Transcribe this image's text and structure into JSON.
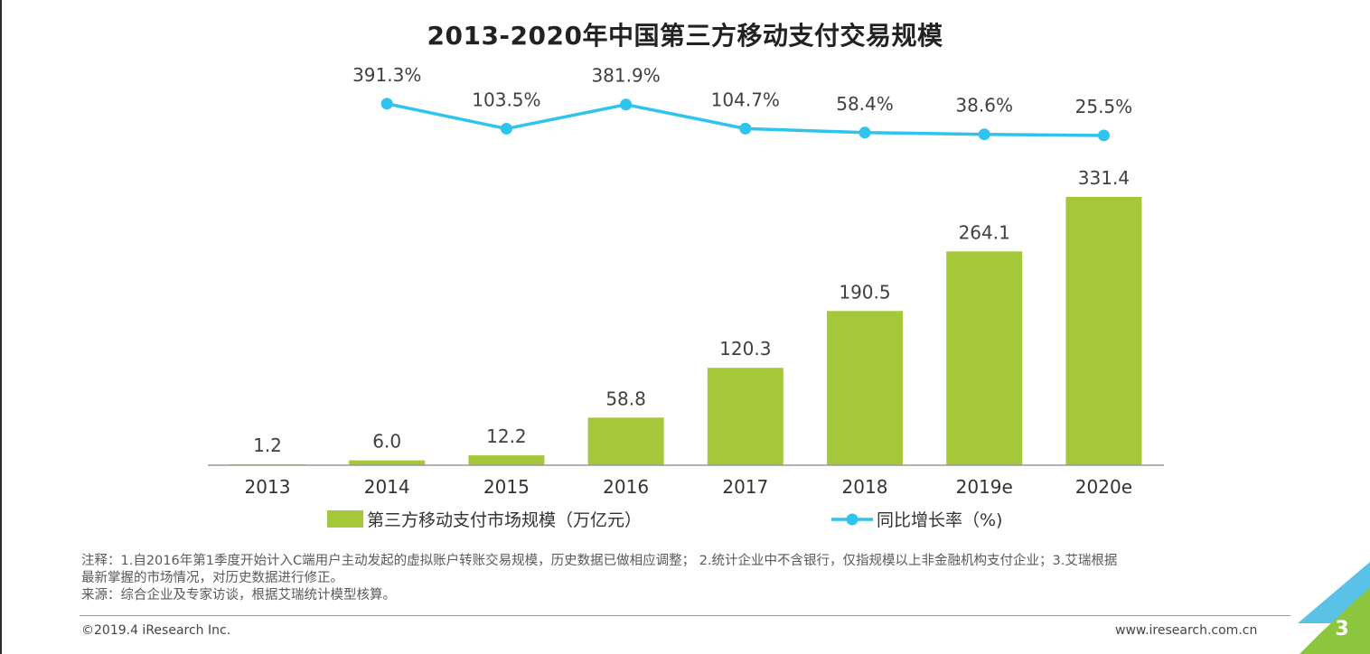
{
  "chart_data": {
    "type": "bar",
    "title": "2013-2020年中国第三方移动支付交易规模",
    "categories": [
      "2013",
      "2014",
      "2015",
      "2016",
      "2017",
      "2018",
      "2019e",
      "2020e"
    ],
    "series": [
      {
        "name": "第三方移动支付市场规模（万亿元）",
        "kind": "bar",
        "color": "#a5c83a",
        "values": [
          1.2,
          6.0,
          12.2,
          58.8,
          120.3,
          190.5,
          264.1,
          331.4
        ],
        "labels": [
          "1.2",
          "6.0",
          "12.2",
          "58.8",
          "120.3",
          "190.5",
          "264.1",
          "331.4"
        ]
      },
      {
        "name": "同比增长率（%)",
        "kind": "line",
        "color": "#2ec4ee",
        "values": [
          null,
          391.3,
          103.5,
          381.9,
          104.7,
          58.4,
          38.6,
          25.5
        ],
        "labels": [
          "",
          "391.3%",
          "103.5%",
          "381.9%",
          "104.7%",
          "58.4%",
          "38.6%",
          "25.5%"
        ]
      }
    ],
    "ylim": [
      0,
      340
    ],
    "legend_position": "bottom",
    "grid": false
  },
  "notes": {
    "line1": "注释：1.自2016年第1季度开始计入C端用户主动发起的虚拟账户转账交易规模，历史数据已做相应调整； 2.统计企业中不含银行，仅指规模以上非金融机构支付企业；3.艾瑞根据",
    "line2": "最新掌握的市场情况，对历史数据进行修正。",
    "source": "来源：综合企业及专家访谈，根据艾瑞统计模型核算。"
  },
  "footer": {
    "copyright": "©2019.4 iResearch Inc.",
    "website": "www.iresearch.com.cn",
    "page_number": "3"
  },
  "colors": {
    "corner_blue": "#5bc2e7",
    "corner_green": "#8cc63f"
  }
}
